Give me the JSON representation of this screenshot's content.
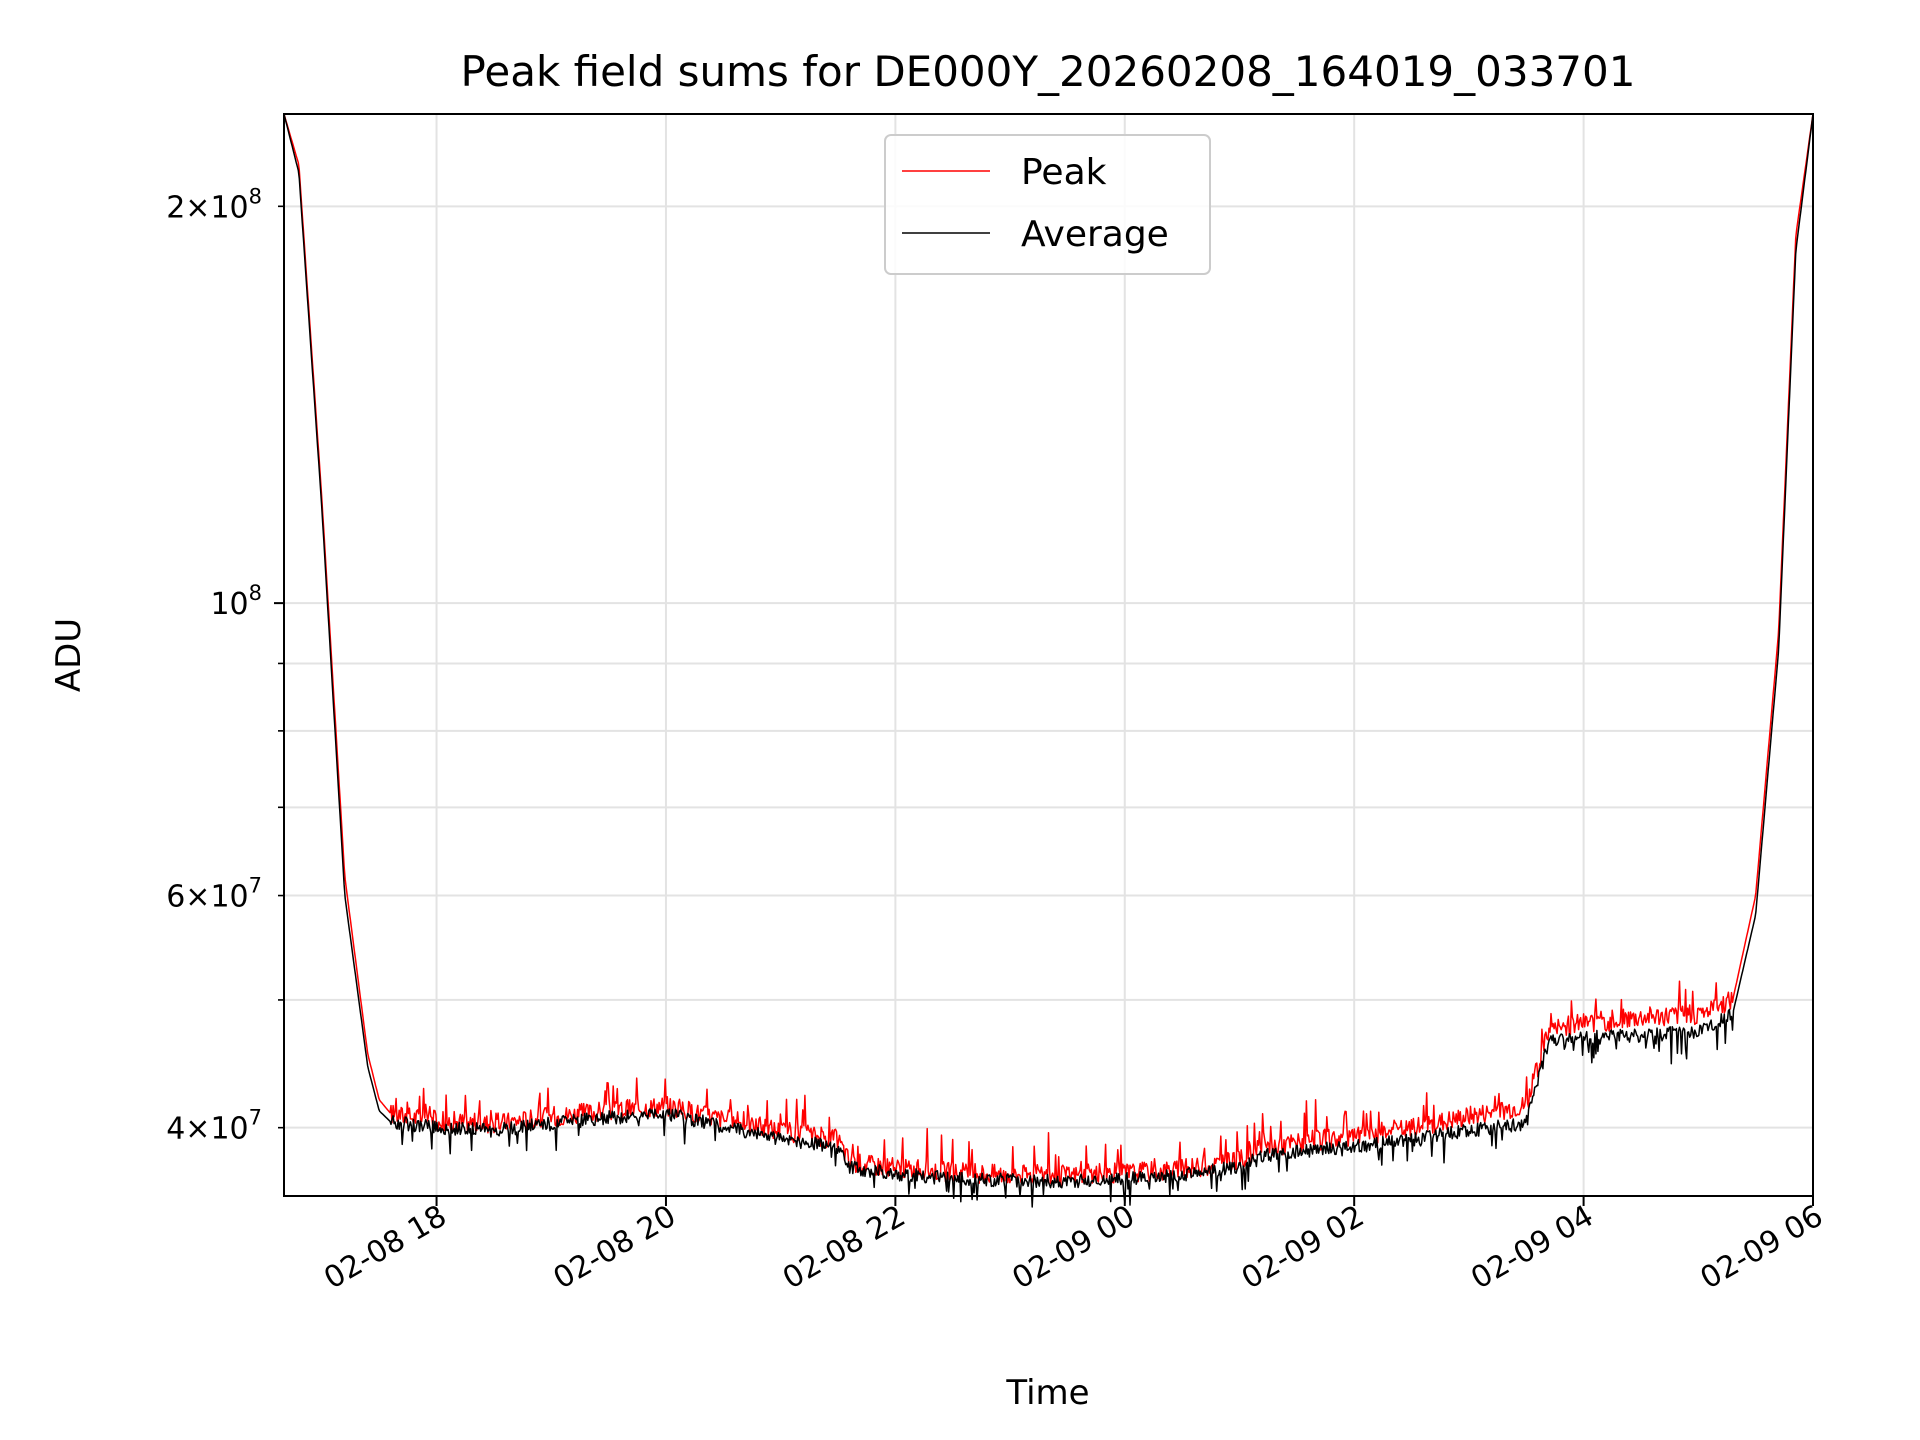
{
  "chart_data": {
    "type": "line",
    "title": "Peak field sums for DE000Y_20260208_164019_033701",
    "xlabel": "Time",
    "ylabel": "ADU",
    "yscale": "log",
    "grid": true,
    "legend_position": "top-center",
    "xlim_hours": [
      16.67,
      30.0
    ],
    "ylim": [
      35500000,
      235000000
    ],
    "x_ticks": [
      {
        "hour": 18,
        "label": "02-08 18"
      },
      {
        "hour": 20,
        "label": "02-08 20"
      },
      {
        "hour": 22,
        "label": "02-08 22"
      },
      {
        "hour": 24,
        "label": "02-09 00"
      },
      {
        "hour": 26,
        "label": "02-09 02"
      },
      {
        "hour": 28,
        "label": "02-09 04"
      },
      {
        "hour": 30,
        "label": "02-09 06"
      }
    ],
    "y_major_ticks": [
      {
        "value": 100000000,
        "base": "10",
        "exp": "8"
      }
    ],
    "y_minor_labeled_ticks": [
      {
        "value": 40000000,
        "mant": "4",
        "exp": "7"
      },
      {
        "value": 60000000,
        "mant": "6",
        "exp": "7"
      },
      {
        "value": 200000000,
        "mant": "2",
        "exp": "8"
      }
    ],
    "y_minor_unlabeled_ticks": [
      50000000,
      70000000,
      80000000,
      90000000
    ],
    "x_unit_note": "hours since 2026-02-08 00:00",
    "series": [
      {
        "name": "Peak",
        "color": "#ff0000",
        "x": [
          16.67,
          16.8,
          17.0,
          17.2,
          17.4,
          17.5,
          17.6,
          18.0,
          18.5,
          19.0,
          19.5,
          20.0,
          20.5,
          21.0,
          21.5,
          21.6,
          22.0,
          22.5,
          23.0,
          23.5,
          24.0,
          24.5,
          25.0,
          25.2,
          25.5,
          26.0,
          26.5,
          27.0,
          27.5,
          27.6,
          27.7,
          28.0,
          28.5,
          29.0,
          29.3,
          29.5,
          29.7,
          29.85,
          30.0
        ],
        "values": [
          235000000,
          215000000,
          120000000,
          62000000,
          45500000,
          42000000,
          41000000,
          40500000,
          40300000,
          40800000,
          41200000,
          41600000,
          40600000,
          39800000,
          39200000,
          37700000,
          37300000,
          37000000,
          36900000,
          36800000,
          37000000,
          37200000,
          37800000,
          38600000,
          39000000,
          39400000,
          40000000,
          40800000,
          41600000,
          44500000,
          47500000,
          48000000,
          48500000,
          48800000,
          50000000,
          60000000,
          95000000,
          190000000,
          235000000
        ]
      },
      {
        "name": "Average",
        "color": "#000000",
        "x": [
          16.67,
          16.8,
          17.0,
          17.2,
          17.4,
          17.5,
          17.6,
          18.0,
          18.5,
          19.0,
          19.5,
          20.0,
          20.5,
          21.0,
          21.5,
          21.6,
          22.0,
          22.5,
          23.0,
          23.5,
          24.0,
          24.5,
          25.0,
          25.2,
          25.5,
          26.0,
          26.5,
          27.0,
          27.5,
          27.6,
          27.7,
          28.0,
          28.5,
          29.0,
          29.3,
          29.5,
          29.7,
          29.85,
          30.0
        ],
        "values": [
          235000000,
          212000000,
          118000000,
          60000000,
          44500000,
          41200000,
          40400000,
          40000000,
          39800000,
          40300000,
          40700000,
          41000000,
          40100000,
          39200000,
          38700000,
          37300000,
          36900000,
          36600000,
          36500000,
          36400000,
          36600000,
          36800000,
          37400000,
          38100000,
          38400000,
          38700000,
          39200000,
          39800000,
          40300000,
          43500000,
          46500000,
          46800000,
          47000000,
          47300000,
          48800000,
          58000000,
          92000000,
          185000000,
          235000000
        ]
      }
    ]
  }
}
